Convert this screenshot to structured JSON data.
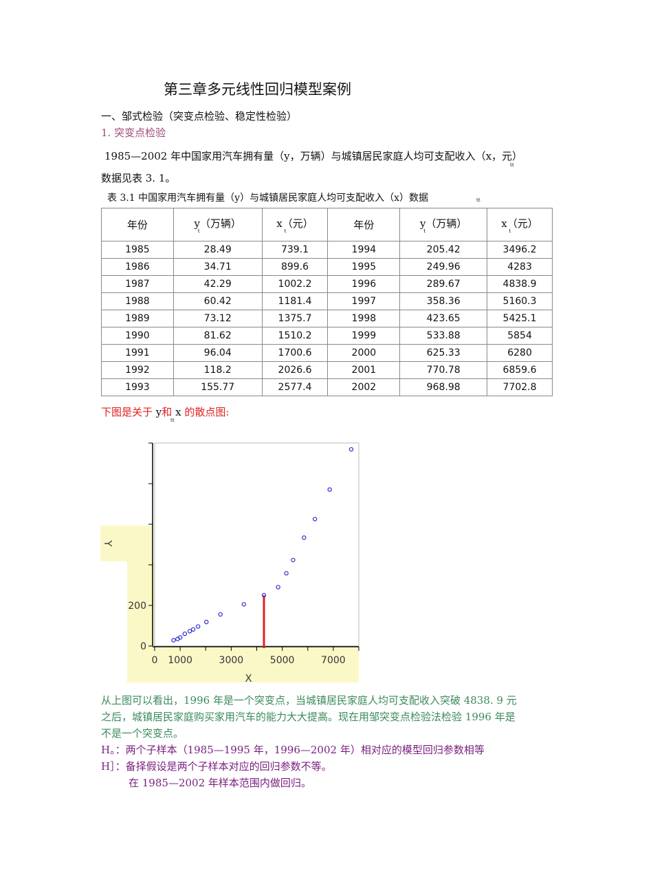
{
  "title": "第三章多元线性回归模型案例",
  "section": "一、邹式检验（突变点检验、稳定性检验）",
  "subsection": "1. 突变点检验",
  "intro_line1": "1985—2002 年中国家用汽车拥有量（y，万辆）与城镇居民家庭人均可支配收入（x，元）",
  "intro_sub": "tt",
  "intro_line2": "数据见表 3. 1。",
  "table_caption": "表 3.1 中国家用汽车拥有量（y）与城镇居民家庭人均可支配收入（x）数据",
  "table_caption_sub": "tt",
  "table": {
    "headers": [
      "年份",
      "y（万辆）",
      "x（元）",
      "年份",
      "y（万辆）",
      "x（元）"
    ],
    "header_sub": "t",
    "rows": [
      [
        "1985",
        "28.49",
        "739.1",
        "1994",
        "205.42",
        "3496.2"
      ],
      [
        "1986",
        "34.71",
        "899.6",
        "1995",
        "249.96",
        "4283"
      ],
      [
        "1987",
        "42.29",
        "1002.2",
        "1996",
        "289.67",
        "4838.9"
      ],
      [
        "1988",
        "60.42",
        "1181.4",
        "1997",
        "358.36",
        "5160.3"
      ],
      [
        "1989",
        "73.12",
        "1375.7",
        "1998",
        "423.65",
        "5425.1"
      ],
      [
        "1990",
        "81.62",
        "1510.2",
        "1999",
        "533.88",
        "5854"
      ],
      [
        "1991",
        "96.04",
        "1700.6",
        "2000",
        "625.33",
        "6280"
      ],
      [
        "1992",
        "118.2",
        "2026.6",
        "2001",
        "770.78",
        "6859.6"
      ],
      [
        "1993",
        "155.77",
        "2577.4",
        "2002",
        "968.98",
        "7702.8"
      ]
    ]
  },
  "chart_intro": "下图是关于 y 和 x 的散点图:",
  "chart_intro_parts": [
    "下图是关于 ",
    "y",
    "和",
    "x",
    "的散点图:"
  ],
  "chart_intro_sub": "tt",
  "chart_data": {
    "type": "scatter",
    "xlabel": "X",
    "ylabel": "Y",
    "xlim": [
      0,
      8000
    ],
    "ylim": [
      0,
      1000
    ],
    "xticks": [
      0,
      1000,
      3000,
      5000,
      7000
    ],
    "yticks": [
      0,
      200,
      400,
      600,
      800,
      1000
    ],
    "ytick_labels_visible": [
      "0",
      "200"
    ],
    "x": [
      739.1,
      899.6,
      1002.2,
      1181.4,
      1375.7,
      1510.2,
      1700.6,
      2026.6,
      2577.4,
      3496.2,
      4283,
      4838.9,
      5160.3,
      5425.1,
      5854,
      6280,
      6859.6,
      7702.8
    ],
    "y": [
      28.49,
      34.71,
      42.29,
      60.42,
      73.12,
      81.62,
      96.04,
      118.2,
      155.77,
      205.42,
      249.96,
      289.67,
      358.36,
      423.65,
      533.88,
      625.33,
      770.78,
      968.98
    ],
    "marker_color": "#2a2ad0",
    "highlight_line": {
      "x": 4283,
      "y_from": 0,
      "y_to": 249.96,
      "color": "#e02020"
    },
    "background_highlight": "#fbf8c8"
  },
  "para1": " 从上图可以看出，1996 年是一个突变点，当城镇居民家庭人均可支配收入突破 4838. 9 元",
  "para2": "之后，城镇居民家庭购买家用汽车的能力大大提高。现在用邹突变点检验法检验 1996 年是",
  "para3": "不是一个突变点。",
  "h0": "H。：两个子样本（1985—1995 年，1996—2002 年）相对应的模型回归参数相等",
  "h1": "H］：备择假设是两个子样本对应的回归参数不等。",
  "regress": "在 1985—2002 年样本范围内做回归。"
}
